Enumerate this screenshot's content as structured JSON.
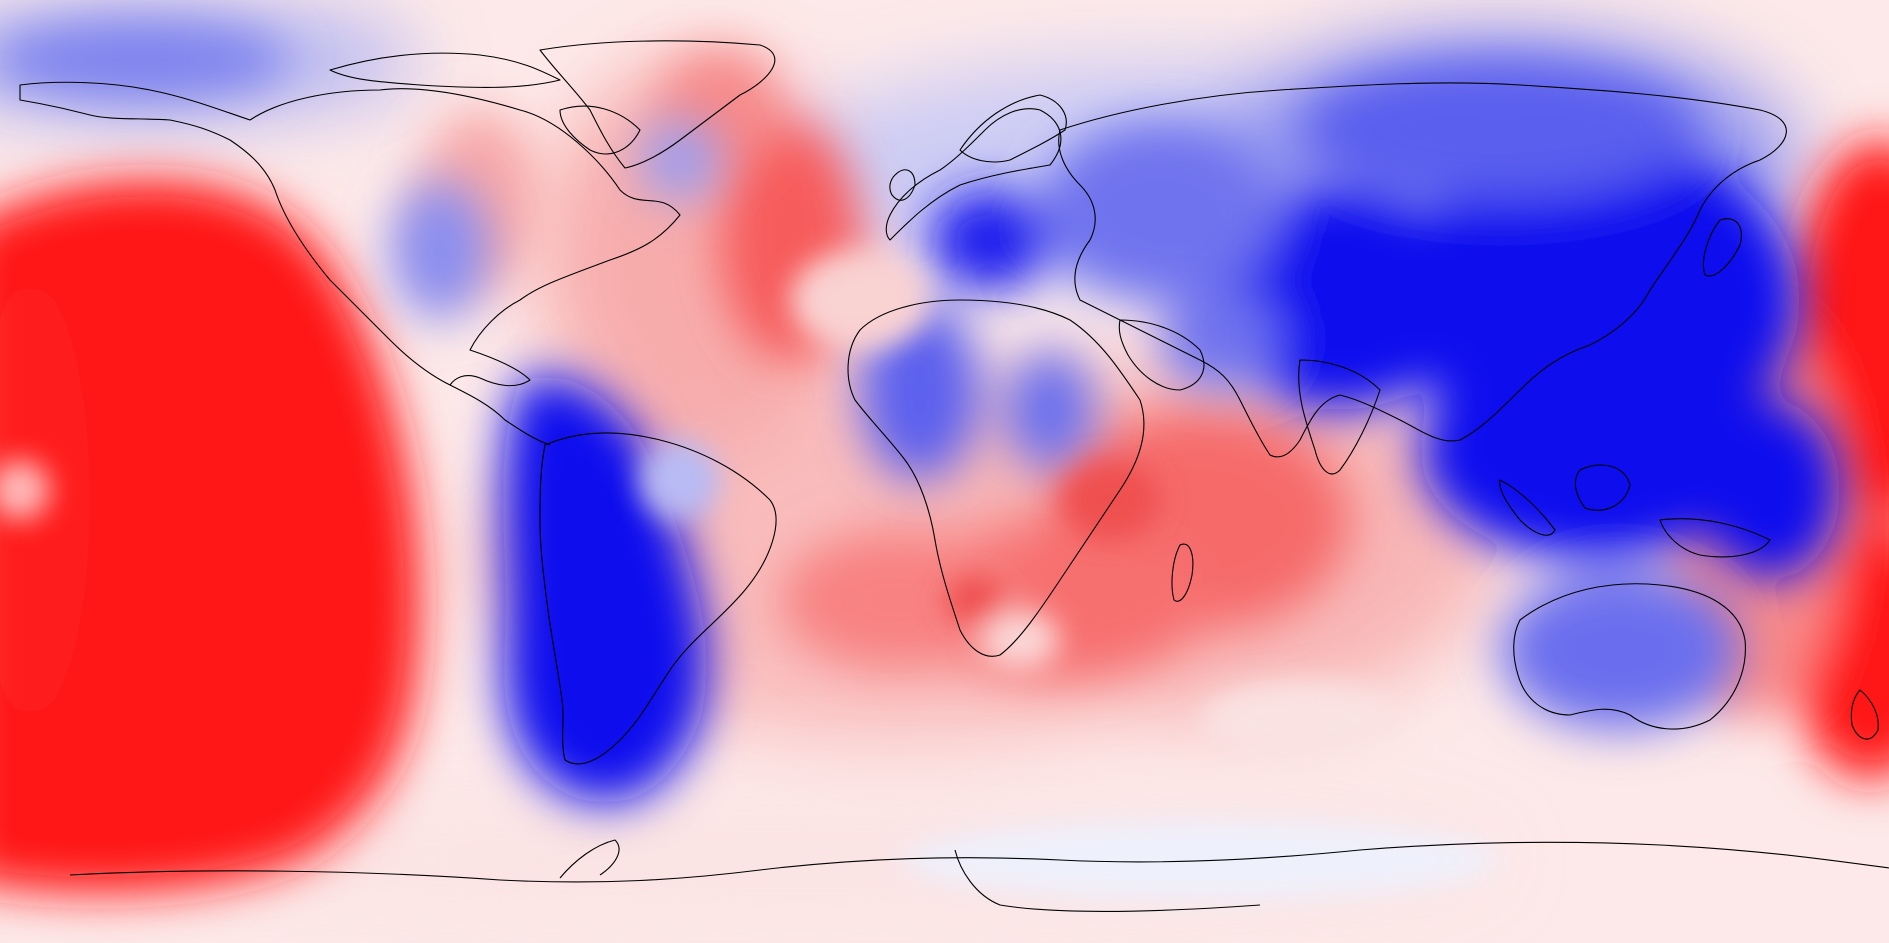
{
  "map": {
    "projection": "equirectangular",
    "colormap": {
      "negative": "#0000ee",
      "neutral": "#ffffff",
      "positive": "#ff0000"
    },
    "coastline_color": "#000000",
    "anomaly_regions": [
      {
        "id": "central-north-pacific",
        "sign": "positive",
        "strength": "strong"
      },
      {
        "id": "south-pacific-east",
        "sign": "positive",
        "strength": "strong"
      },
      {
        "id": "far-west-pacific",
        "sign": "positive",
        "strength": "strong"
      },
      {
        "id": "north-atlantic",
        "sign": "positive",
        "strength": "moderate"
      },
      {
        "id": "greenland",
        "sign": "positive",
        "strength": "weak"
      },
      {
        "id": "indian-ocean",
        "sign": "positive",
        "strength": "moderate"
      },
      {
        "id": "south-atlantic",
        "sign": "positive",
        "strength": "moderate"
      },
      {
        "id": "south-america",
        "sign": "negative",
        "strength": "strong"
      },
      {
        "id": "central-europe",
        "sign": "negative",
        "strength": "strong"
      },
      {
        "id": "east-asia",
        "sign": "negative",
        "strength": "strong"
      },
      {
        "id": "maritime-continent",
        "sign": "negative",
        "strength": "strong"
      },
      {
        "id": "siberia",
        "sign": "negative",
        "strength": "moderate"
      },
      {
        "id": "west-africa",
        "sign": "negative",
        "strength": "moderate"
      },
      {
        "id": "australia",
        "sign": "negative",
        "strength": "weak"
      },
      {
        "id": "north-pacific-arctic",
        "sign": "negative",
        "strength": "weak"
      }
    ]
  }
}
